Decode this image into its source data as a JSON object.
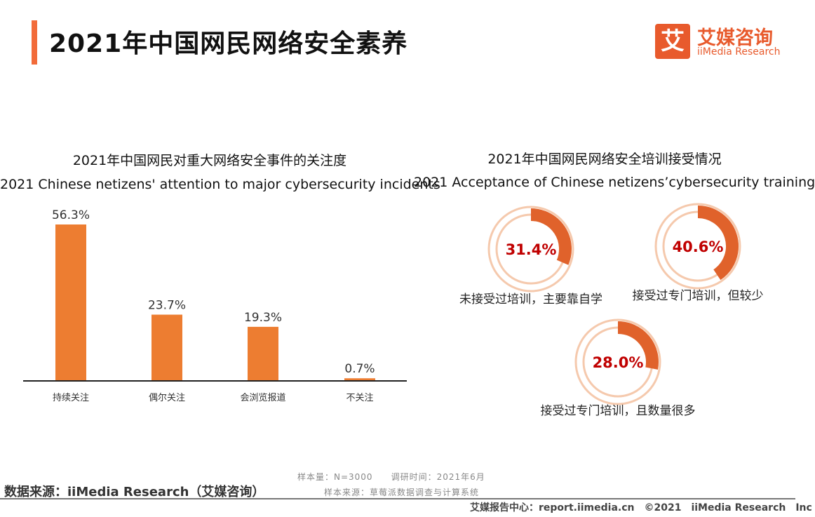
{
  "header": {
    "title": "2021年中国网民网络安全素养"
  },
  "logo": {
    "mark": "艾",
    "cn": "艾媒咨询",
    "en": "iiMedia Research"
  },
  "left_chart": {
    "title_cn": "2021年中国网民对重大网络安全事件的关注度",
    "title_en": "2021 Chinese netizens' attention to major cybersecurity incidents"
  },
  "right_chart": {
    "title_cn": "2021年中国网民网络安全培训接受情况",
    "title_en": "2021 Acceptance of Chinese netizens’cybersecurity training"
  },
  "colors": {
    "accent": "#f26b3a",
    "bar": "#ed7d31",
    "donut": "#e0622b",
    "donut_track": "#f5c9ad",
    "value_text": "#c00000"
  },
  "chart_data": [
    {
      "type": "bar",
      "title": "2021 Chinese netizens' attention to major cybersecurity incidents",
      "categories": [
        "持续关注",
        "偶尔关注",
        "会浏览报道",
        "不关注"
      ],
      "values": [
        56.3,
        23.7,
        19.3,
        0.7
      ],
      "labels": [
        "56.3%",
        "23.7%",
        "19.3%",
        "0.7%"
      ],
      "unit": "%",
      "ylim": [
        0,
        60
      ],
      "grid": false
    },
    {
      "type": "pie",
      "title": "2021 Acceptance of Chinese netizens’cybersecurity training",
      "categories": [
        "未接受过培训，主要靠自学",
        "接受过专门培训，但较少",
        "接受过专门培训，且数量很多"
      ],
      "values": [
        31.4,
        40.6,
        28.0
      ],
      "labels": [
        "31.4%",
        "40.6%",
        "28.0%"
      ],
      "unit": "%"
    }
  ],
  "footer": {
    "source": "数据来源：iiMedia Research（艾媒咨询）",
    "sample": "样本量：N=3000　　调研时间：2021年6月",
    "method": "样本来源：草莓派数据调查与计算系统",
    "copyright": "艾媒报告中心：report.iimedia.cn　©2021　iiMedia Research　Inc"
  }
}
